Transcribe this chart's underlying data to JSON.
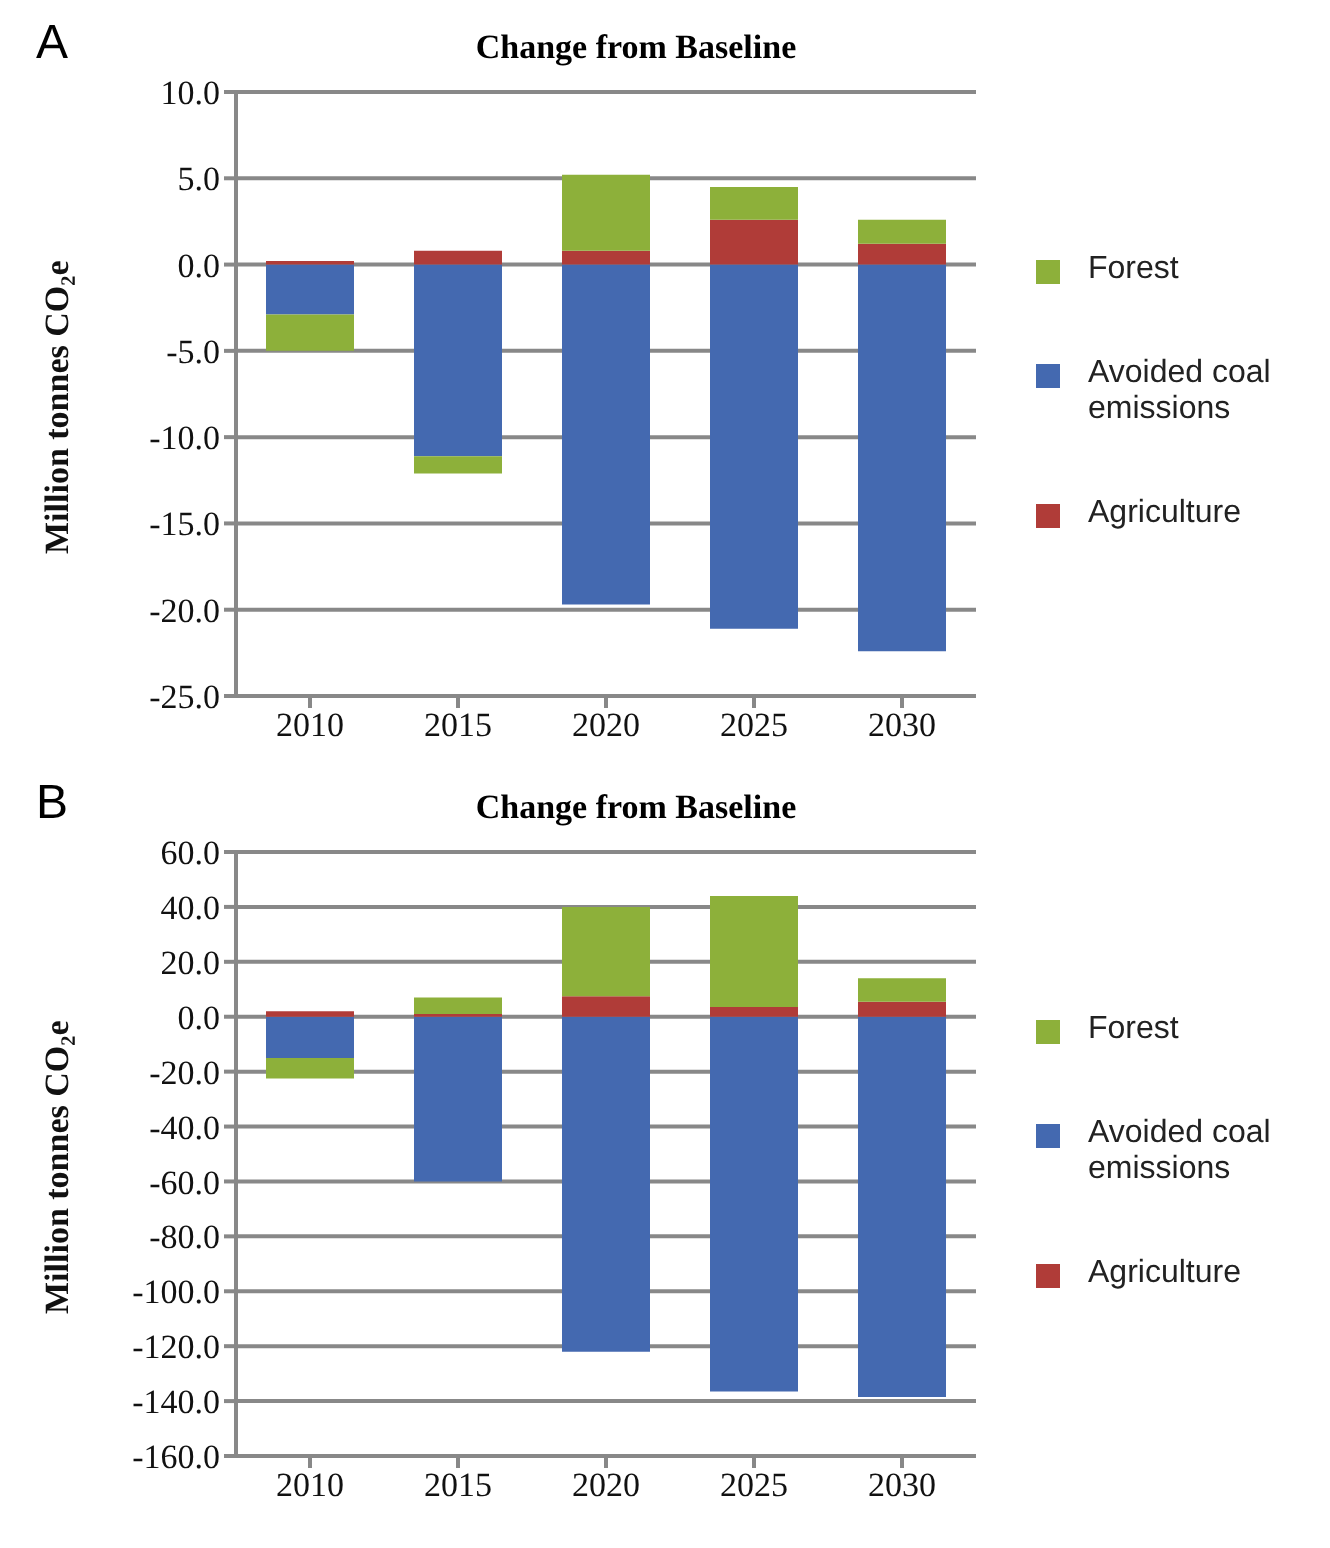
{
  "chart_data": [
    {
      "type": "bar",
      "title": "Change from Baseline",
      "ylabel": "Million tonnes CO₂e",
      "annotations": [
        "A"
      ],
      "categories": [
        "2010",
        "2015",
        "2020",
        "2025",
        "2030"
      ],
      "stacked": true,
      "grid": "y",
      "legend": "right",
      "ylim": [
        -25,
        10
      ],
      "yticks": [
        {
          "value": -25,
          "label": "-25.0"
        },
        {
          "value": -20,
          "label": "-20.0"
        },
        {
          "value": -15,
          "label": "-15.0"
        },
        {
          "value": -10,
          "label": "-10.0"
        },
        {
          "value": -5,
          "label": "-5.0"
        },
        {
          "value": 0,
          "label": "0.0"
        },
        {
          "value": 5,
          "label": "5.0"
        },
        {
          "value": 10,
          "label": "10.0"
        }
      ],
      "series": [
        {
          "name": "Avoided coal emissions",
          "color": "#4469b0",
          "values": [
            -2.9,
            -11.1,
            -19.7,
            -21.1,
            -22.4
          ]
        },
        {
          "name": "Agriculture",
          "color": "#b03c38",
          "values": [
            0.2,
            0.8,
            0.8,
            2.6,
            1.2
          ]
        },
        {
          "name": "Forest",
          "color": "#8db03a",
          "values": [
            -2.1,
            -1.0,
            4.4,
            1.9,
            1.4
          ]
        }
      ]
    },
    {
      "type": "bar",
      "title": "Change from Baseline",
      "ylabel": "Million tonnes CO₂e",
      "annotations": [
        "B"
      ],
      "categories": [
        "2010",
        "2015",
        "2020",
        "2025",
        "2030"
      ],
      "stacked": true,
      "grid": "y",
      "legend": "right",
      "ylim": [
        -160,
        60
      ],
      "yticks": [
        {
          "value": -160,
          "label": "-160.0"
        },
        {
          "value": -140,
          "label": "-140.0"
        },
        {
          "value": -120,
          "label": "-120.0"
        },
        {
          "value": -100,
          "label": "-100.0"
        },
        {
          "value": -80,
          "label": "-80.0"
        },
        {
          "value": -60,
          "label": "-60.0"
        },
        {
          "value": -40,
          "label": "-40.0"
        },
        {
          "value": -20,
          "label": "-20.0"
        },
        {
          "value": 0,
          "label": "0.0"
        },
        {
          "value": 20,
          "label": "20.0"
        },
        {
          "value": 40,
          "label": "40.0"
        },
        {
          "value": 60,
          "label": "60.0"
        }
      ],
      "series": [
        {
          "name": "Avoided coal emissions",
          "color": "#4469b0",
          "values": [
            -15,
            -60,
            -122,
            -136.5,
            -138.5
          ]
        },
        {
          "name": "Agriculture",
          "color": "#b03c38",
          "values": [
            2,
            1,
            7.5,
            3.5,
            5.5
          ]
        },
        {
          "name": "Forest",
          "color": "#8db03a",
          "values": [
            -7.5,
            6,
            32.5,
            40.5,
            8.5
          ]
        }
      ]
    }
  ]
}
